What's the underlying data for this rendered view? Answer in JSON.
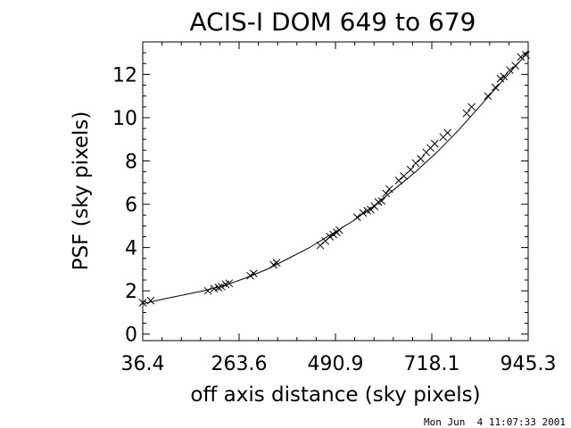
{
  "chart_data": {
    "type": "scatter",
    "title": "ACIS-I DOM 649 to 679",
    "xlabel": "off axis distance (sky pixels)",
    "ylabel": "PSF (sky pixels)",
    "xlim": [
      36.4,
      945.3
    ],
    "ylim": [
      -0.3,
      13.5
    ],
    "x_ticks": [
      36.4,
      263.6,
      490.9,
      718.1,
      945.3
    ],
    "x_tick_labels": [
      "36.4",
      "263.6",
      "490.9",
      "718.1",
      "945.3"
    ],
    "y_ticks": [
      0,
      2,
      4,
      6,
      8,
      10,
      12
    ],
    "y_tick_labels": [
      "0",
      "2",
      "4",
      "6",
      "8",
      "10",
      "12"
    ],
    "grid": false,
    "legend": "none",
    "series": [
      {
        "marker": "x",
        "x": [
          36.4,
          55,
          190,
          205,
          215,
          222,
          232,
          240,
          290,
          298,
          345,
          352,
          455,
          467,
          478,
          486,
          494,
          500,
          542,
          556,
          566,
          574,
          583,
          592,
          600,
          610,
          618,
          640,
          652,
          668,
          680,
          692,
          705,
          715,
          725,
          745,
          755,
          800,
          812,
          850,
          868,
          880,
          888,
          902,
          915,
          928,
          940
        ],
        "y": [
          1.45,
          1.55,
          2.0,
          2.1,
          2.15,
          2.2,
          2.3,
          2.35,
          2.7,
          2.8,
          3.2,
          3.3,
          4.1,
          4.3,
          4.5,
          4.6,
          4.7,
          4.8,
          5.4,
          5.6,
          5.7,
          5.75,
          5.9,
          6.1,
          6.15,
          6.5,
          6.7,
          7.1,
          7.3,
          7.6,
          7.9,
          8.1,
          8.4,
          8.6,
          8.8,
          9.1,
          9.3,
          10.2,
          10.5,
          11.0,
          11.4,
          11.8,
          11.9,
          12.2,
          12.4,
          12.8,
          12.9
        ]
      }
    ],
    "fit_curve": {
      "x": [
        36.4,
        80,
        130,
        180,
        230,
        280,
        330,
        380,
        430,
        480,
        530,
        580,
        630,
        680,
        730,
        780,
        830,
        880,
        930,
        945.3
      ],
      "y": [
        1.4,
        1.6,
        1.8,
        2.0,
        2.25,
        2.6,
        3.0,
        3.5,
        4.0,
        4.6,
        5.2,
        5.9,
        6.7,
        7.5,
        8.4,
        9.4,
        10.5,
        11.6,
        12.7,
        13.1
      ]
    }
  },
  "footer": {
    "timestamp": "Mon Jun  4 11:07:33 2001"
  }
}
